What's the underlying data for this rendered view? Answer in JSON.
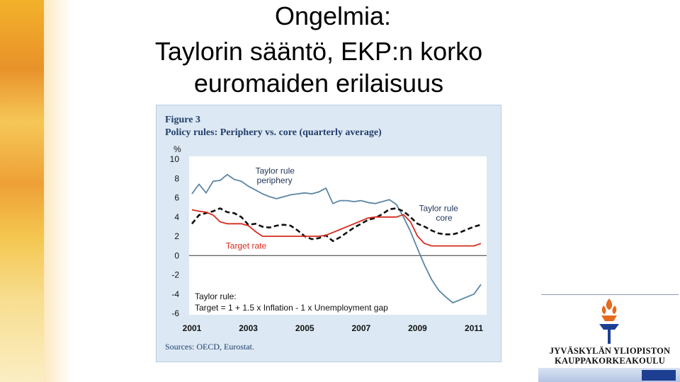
{
  "slide": {
    "title_line1": "Ongelmia:",
    "title_line2": "Taylorin sääntö, EKP:n korko",
    "title_line3": "euromaiden erilaisuus"
  },
  "figure": {
    "label": "Figure 3",
    "source": "Sources: OECD, Eurostat."
  },
  "chart_data": {
    "type": "line",
    "title": "Policy rules: Periphery vs. core (quarterly average)",
    "ylabel": "%",
    "ylim": [
      -6,
      10
    ],
    "yticks": [
      10,
      8,
      6,
      4,
      2,
      0,
      -2,
      -4,
      -6
    ],
    "xlim": [
      2001,
      2011.4
    ],
    "xticks": [
      "2001",
      "2003",
      "2005",
      "2007",
      "2009",
      "2011"
    ],
    "grid": false,
    "series": [
      {
        "name": "Taylor rule periphery",
        "color": "#5b86a6",
        "style": "solid",
        "x": [
          2001.0,
          2001.25,
          2001.5,
          2001.75,
          2002.0,
          2002.25,
          2002.5,
          2002.75,
          2003.0,
          2003.25,
          2003.5,
          2003.75,
          2004.0,
          2004.25,
          2004.5,
          2004.75,
          2005.0,
          2005.25,
          2005.5,
          2005.75,
          2006.0,
          2006.25,
          2006.5,
          2006.75,
          2007.0,
          2007.25,
          2007.5,
          2007.75,
          2008.0,
          2008.25,
          2008.5,
          2008.75,
          2009.0,
          2009.25,
          2009.5,
          2009.75,
          2010.0,
          2010.25,
          2010.5,
          2010.75,
          2011.0,
          2011.25
        ],
        "values": [
          6.4,
          7.4,
          6.5,
          7.7,
          7.8,
          8.4,
          7.9,
          7.7,
          7.2,
          6.8,
          6.4,
          6.1,
          5.9,
          6.1,
          6.3,
          6.4,
          6.5,
          6.4,
          6.6,
          7.0,
          5.4,
          5.7,
          5.7,
          5.6,
          5.7,
          5.5,
          5.4,
          5.6,
          5.8,
          5.3,
          4.0,
          2.5,
          0.7,
          -1.0,
          -2.5,
          -3.6,
          -4.3,
          -4.9,
          -4.6,
          -4.3,
          -4.0,
          -3.0
        ]
      },
      {
        "name": "Taylor rule core",
        "color": "#111111",
        "style": "dashed",
        "x": [
          2001.0,
          2001.25,
          2001.5,
          2001.75,
          2002.0,
          2002.25,
          2002.5,
          2002.75,
          2003.0,
          2003.25,
          2003.5,
          2003.75,
          2004.0,
          2004.25,
          2004.5,
          2004.75,
          2005.0,
          2005.25,
          2005.5,
          2005.75,
          2006.0,
          2006.25,
          2006.5,
          2006.75,
          2007.0,
          2007.25,
          2007.5,
          2007.75,
          2008.0,
          2008.25,
          2008.5,
          2008.75,
          2009.0,
          2009.25,
          2009.5,
          2009.75,
          2010.0,
          2010.25,
          2010.5,
          2010.75,
          2011.0,
          2011.25
        ],
        "values": [
          3.3,
          4.2,
          4.4,
          4.6,
          4.9,
          4.5,
          4.4,
          4.0,
          3.2,
          3.3,
          3.0,
          2.9,
          3.1,
          3.2,
          3.1,
          2.6,
          2.0,
          1.7,
          1.8,
          2.1,
          1.5,
          1.9,
          2.4,
          2.9,
          3.3,
          3.7,
          3.9,
          4.3,
          4.8,
          4.9,
          4.6,
          4.0,
          3.3,
          3.0,
          2.6,
          2.3,
          2.2,
          2.2,
          2.4,
          2.7,
          3.0,
          3.2
        ]
      },
      {
        "name": "Target rate",
        "color": "#d62b1f",
        "style": "solid",
        "x": [
          2001.0,
          2001.25,
          2001.5,
          2001.75,
          2002.0,
          2002.25,
          2002.5,
          2002.75,
          2003.0,
          2003.25,
          2003.5,
          2003.75,
          2004.0,
          2004.25,
          2004.5,
          2004.75,
          2005.0,
          2005.25,
          2005.5,
          2005.75,
          2006.0,
          2006.25,
          2006.5,
          2006.75,
          2007.0,
          2007.25,
          2007.5,
          2007.75,
          2008.0,
          2008.25,
          2008.5,
          2008.75,
          2009.0,
          2009.25,
          2009.5,
          2009.75,
          2010.0,
          2010.25,
          2010.5,
          2010.75,
          2011.0,
          2011.25
        ],
        "values": [
          4.75,
          4.6,
          4.5,
          4.2,
          3.5,
          3.3,
          3.3,
          3.3,
          3.1,
          2.5,
          2.0,
          2.0,
          2.0,
          2.0,
          2.0,
          2.0,
          2.0,
          2.0,
          2.0,
          2.1,
          2.4,
          2.7,
          3.0,
          3.3,
          3.6,
          3.9,
          4.0,
          4.0,
          4.0,
          4.0,
          4.25,
          3.5,
          2.0,
          1.25,
          1.0,
          1.0,
          1.0,
          1.0,
          1.0,
          1.0,
          1.0,
          1.25
        ]
      }
    ],
    "annotations": [
      {
        "text": "Taylor rule",
        "at_x": 2003.25,
        "at_y": 8.5
      },
      {
        "text": "periphery",
        "at_x": 2003.3,
        "at_y": 7.5
      },
      {
        "text": "Taylor rule",
        "at_x": 2009.05,
        "at_y": 4.6
      },
      {
        "text": "core",
        "at_x": 2009.65,
        "at_y": 3.6
      },
      {
        "text": "Target rate",
        "at_x": 2002.2,
        "at_y": 0.7,
        "color": "#d62b1f"
      }
    ],
    "formula_title": "Taylor rule:",
    "formula": "Target = 1 + 1.5 x Inflation - 1 x Unemployment gap"
  },
  "logo": {
    "name_line1": "JYVÄSKYLÄN YLIOPISTON",
    "name_line2": "KAUPPAKORKEAKOULU"
  }
}
